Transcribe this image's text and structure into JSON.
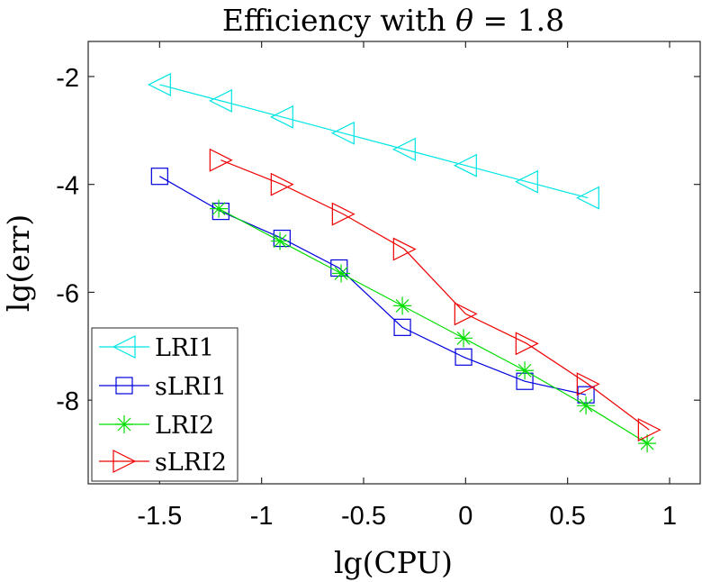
{
  "chart_data": {
    "type": "line",
    "title": "Efficiency with θ = 1.8",
    "title_prefix": "Efficiency with ",
    "title_symbol": "θ",
    "title_suffix": " = 1.8",
    "xlabel": "lg(CPU)",
    "ylabel": "lg(err)",
    "xlim": [
      -1.85,
      1.15
    ],
    "ylim": [
      -9.55,
      -1.35
    ],
    "x_ticks": [
      -1.5,
      -1,
      -0.5,
      0,
      0.5,
      1
    ],
    "x_tick_labels": [
      "-1.5",
      "-1",
      "-0.5",
      "0",
      "0.5",
      "1"
    ],
    "y_ticks": [
      -2,
      -4,
      -6,
      -8
    ],
    "y_tick_labels": [
      "-2",
      "-4",
      "-6",
      "-8"
    ],
    "grid": false,
    "legend_position": "bottom-left",
    "series": [
      {
        "name": "LRI1",
        "color": "#00e5e5",
        "marker": "triangle-left",
        "x": [
          -1.5,
          -1.2,
          -0.9,
          -0.6,
          -0.3,
          0.0,
          0.3,
          0.6
        ],
        "y": [
          -2.15,
          -2.45,
          -2.75,
          -3.05,
          -3.35,
          -3.65,
          -3.95,
          -4.25
        ]
      },
      {
        "name": "sLRI1",
        "color": "#0000dd",
        "marker": "square",
        "x": [
          -1.5,
          -1.2,
          -0.9,
          -0.62,
          -0.31,
          -0.01,
          0.29,
          0.59
        ],
        "y": [
          -3.85,
          -4.5,
          -5.0,
          -5.55,
          -6.65,
          -7.2,
          -7.65,
          -7.9
        ]
      },
      {
        "name": "LRI2",
        "color": "#00dd00",
        "marker": "asterisk",
        "x": [
          -1.21,
          -0.91,
          -0.61,
          -0.31,
          -0.01,
          0.29,
          0.59,
          0.89
        ],
        "y": [
          -4.45,
          -5.05,
          -5.65,
          -6.25,
          -6.85,
          -7.45,
          -8.1,
          -8.8
        ]
      },
      {
        "name": "sLRI2",
        "color": "#ee0000",
        "marker": "triangle-right",
        "x": [
          -1.2,
          -0.9,
          -0.6,
          -0.3,
          0.0,
          0.3,
          0.6,
          0.9
        ],
        "y": [
          -3.55,
          -4.0,
          -4.55,
          -5.2,
          -6.4,
          -6.95,
          -7.7,
          -8.55
        ]
      }
    ]
  }
}
